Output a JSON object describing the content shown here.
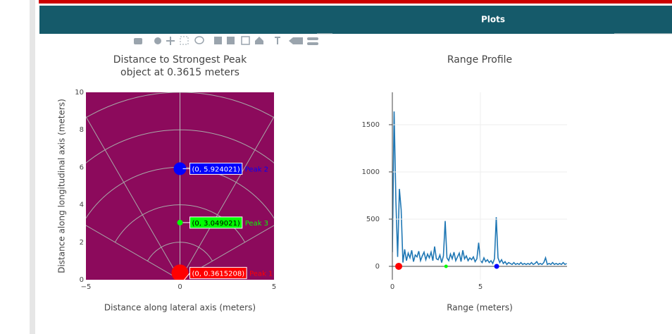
{
  "header": {
    "title": "Plots"
  },
  "chart_data": [
    {
      "type": "scatter",
      "title": "Distance to Strongest Peak",
      "subtitle": "object at 0.3615 meters",
      "xlabel": "Distance along lateral axis (meters)",
      "ylabel": "Distance along longitudinal axis (meters)",
      "xlim": [
        -5,
        5
      ],
      "ylim": [
        0,
        10
      ],
      "xticks": [
        {
          "value": -5,
          "label": "−5"
        },
        0,
        5
      ],
      "yticks": [
        0,
        2,
        4,
        6,
        8,
        10
      ],
      "plot_bgcolor": "#8c0a5c",
      "polar_grid": true,
      "series": [
        {
          "name": "Peak 1",
          "color": "#ff0000",
          "marker_size": 12,
          "x": [
            0
          ],
          "values": [
            0.3615208
          ],
          "point_labels": [
            "(0, 0.3615208)"
          ]
        },
        {
          "name": "Peak 2",
          "color": "#0000ff",
          "marker_size": 9,
          "x": [
            0
          ],
          "values": [
            5.924021
          ],
          "point_labels": [
            "(0, 5.924021)"
          ]
        },
        {
          "name": "Peak 3",
          "color": "#00ff00",
          "marker_size": 4,
          "x": [
            0
          ],
          "values": [
            3.049021
          ],
          "point_labels": [
            "(0, 3.049021)"
          ]
        }
      ]
    },
    {
      "type": "line",
      "title": "Range Profile",
      "xlabel": "Range (meters)",
      "xlim": [
        0,
        9.92
      ],
      "ylim": [
        -142,
        1843
      ],
      "xticks": [
        0,
        5
      ],
      "yticks": [
        0,
        500,
        1000,
        1500
      ],
      "grid": true,
      "series": [
        {
          "color": "#1f77b4",
          "x": [
            0.0,
            0.1,
            0.2,
            0.3,
            0.4,
            0.5,
            0.6,
            0.7,
            0.8,
            0.9,
            1.0,
            1.1,
            1.2,
            1.3,
            1.4,
            1.5,
            1.6,
            1.7,
            1.8,
            1.9,
            2.0,
            2.1,
            2.2,
            2.3,
            2.4,
            2.5,
            2.6,
            2.7,
            2.8,
            2.9,
            3.0,
            3.1,
            3.2,
            3.3,
            3.4,
            3.5,
            3.6,
            3.7,
            3.8,
            3.9,
            4.0,
            4.1,
            4.2,
            4.3,
            4.4,
            4.5,
            4.6,
            4.7,
            4.8,
            4.9,
            5.0,
            5.1,
            5.2,
            5.3,
            5.4,
            5.5,
            5.6,
            5.7,
            5.8,
            5.9,
            6.0,
            6.1,
            6.2,
            6.3,
            6.4,
            6.5,
            6.6,
            6.7,
            6.8,
            6.9,
            7.0,
            7.1,
            7.2,
            7.3,
            7.4,
            7.5,
            7.6,
            7.7,
            7.8,
            7.9,
            8.0,
            8.1,
            8.2,
            8.3,
            8.4,
            8.5,
            8.6,
            8.7,
            8.8,
            8.9,
            9.0,
            9.1,
            9.2,
            9.3,
            9.4,
            9.5,
            9.6,
            9.7,
            9.8,
            9.9
          ],
          "values": [
            150,
            1640,
            700,
            100,
            820,
            600,
            40,
            180,
            60,
            140,
            90,
            170,
            50,
            120,
            100,
            160,
            60,
            110,
            150,
            70,
            130,
            90,
            150,
            60,
            210,
            80,
            70,
            120,
            40,
            110,
            480,
            90,
            60,
            130,
            80,
            150,
            60,
            100,
            140,
            50,
            170,
            80,
            110,
            60,
            90,
            70,
            100,
            50,
            80,
            250,
            60,
            40,
            90,
            50,
            70,
            40,
            60,
            30,
            80,
            520,
            90,
            40,
            70,
            30,
            50,
            20,
            40,
            30,
            20,
            40,
            20,
            30,
            20,
            40,
            20,
            30,
            20,
            30,
            20,
            40,
            20,
            30,
            50,
            20,
            30,
            20,
            40,
            90,
            20,
            30,
            20,
            40,
            20,
            30,
            20,
            30,
            20,
            40,
            20,
            30
          ]
        },
        {
          "color": "#ff0000",
          "marker_size": 5,
          "x": [
            0.3615208
          ],
          "values": [
            0
          ]
        },
        {
          "color": "#00ff00",
          "marker_size": 2.5,
          "x": [
            3.049021
          ],
          "values": [
            0
          ]
        },
        {
          "color": "#0000ff",
          "marker_size": 3.5,
          "x": [
            5.924021
          ],
          "values": [
            0
          ]
        }
      ]
    }
  ]
}
